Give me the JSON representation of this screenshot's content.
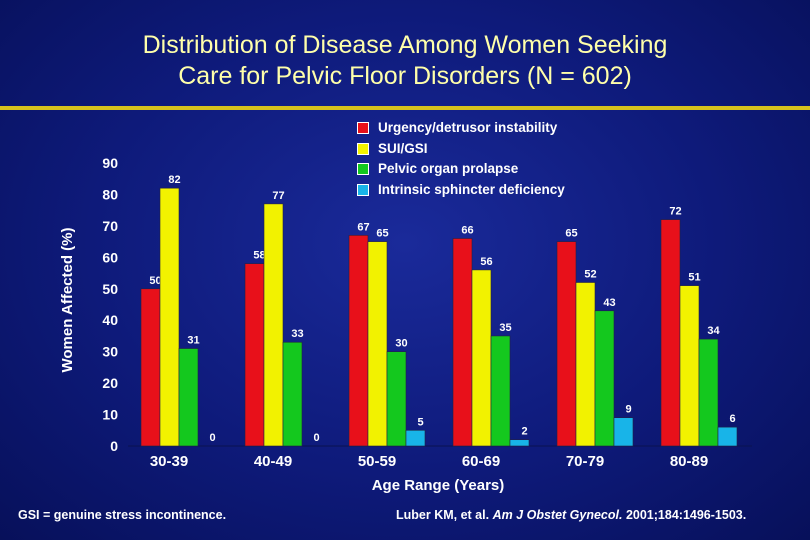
{
  "title": {
    "line1": "Distribution of Disease Among Women Seeking",
    "line2": "Care for Pelvic Floor Disorders (N = 602)"
  },
  "legend": [
    {
      "label": "Urgency/detrusor instability",
      "color": "#e8101a"
    },
    {
      "label": "SUI/GSI",
      "color": "#f2f200"
    },
    {
      "label": "Pelvic organ prolapse",
      "color": "#14c81e"
    },
    {
      "label": "Intrinsic sphincter deficiency",
      "color": "#18b4e8"
    }
  ],
  "chart_data": {
    "type": "bar",
    "title": "Distribution of Disease Among Women Seeking Care for Pelvic Floor Disorders (N = 602)",
    "xlabel": "Age Range (Years)",
    "ylabel": "Women Affected (%)",
    "ylim": [
      0,
      90
    ],
    "yticks": [
      0,
      10,
      20,
      30,
      40,
      50,
      60,
      70,
      80,
      90
    ],
    "categories": [
      "30-39",
      "40-49",
      "50-59",
      "60-69",
      "70-79",
      "80-89"
    ],
    "series": [
      {
        "name": "Urgency/detrusor instability",
        "color": "#e8101a",
        "values": [
          50,
          58,
          67,
          66,
          65,
          72
        ]
      },
      {
        "name": "SUI/GSI",
        "color": "#f2f200",
        "values": [
          82,
          77,
          65,
          56,
          52,
          51
        ]
      },
      {
        "name": "Pelvic organ prolapse",
        "color": "#14c81e",
        "values": [
          31,
          33,
          30,
          35,
          43,
          34
        ]
      },
      {
        "name": "Intrinsic sphincter deficiency",
        "color": "#18b4e8",
        "values": [
          0,
          0,
          5,
          2,
          9,
          6
        ]
      }
    ]
  },
  "footer": {
    "note": "GSI = genuine stress incontinence.",
    "citation_authors": "Luber KM, et al.",
    "citation_journal": "Am J Obstet Gynecol.",
    "citation_details": "2001;184:1496-1503."
  }
}
